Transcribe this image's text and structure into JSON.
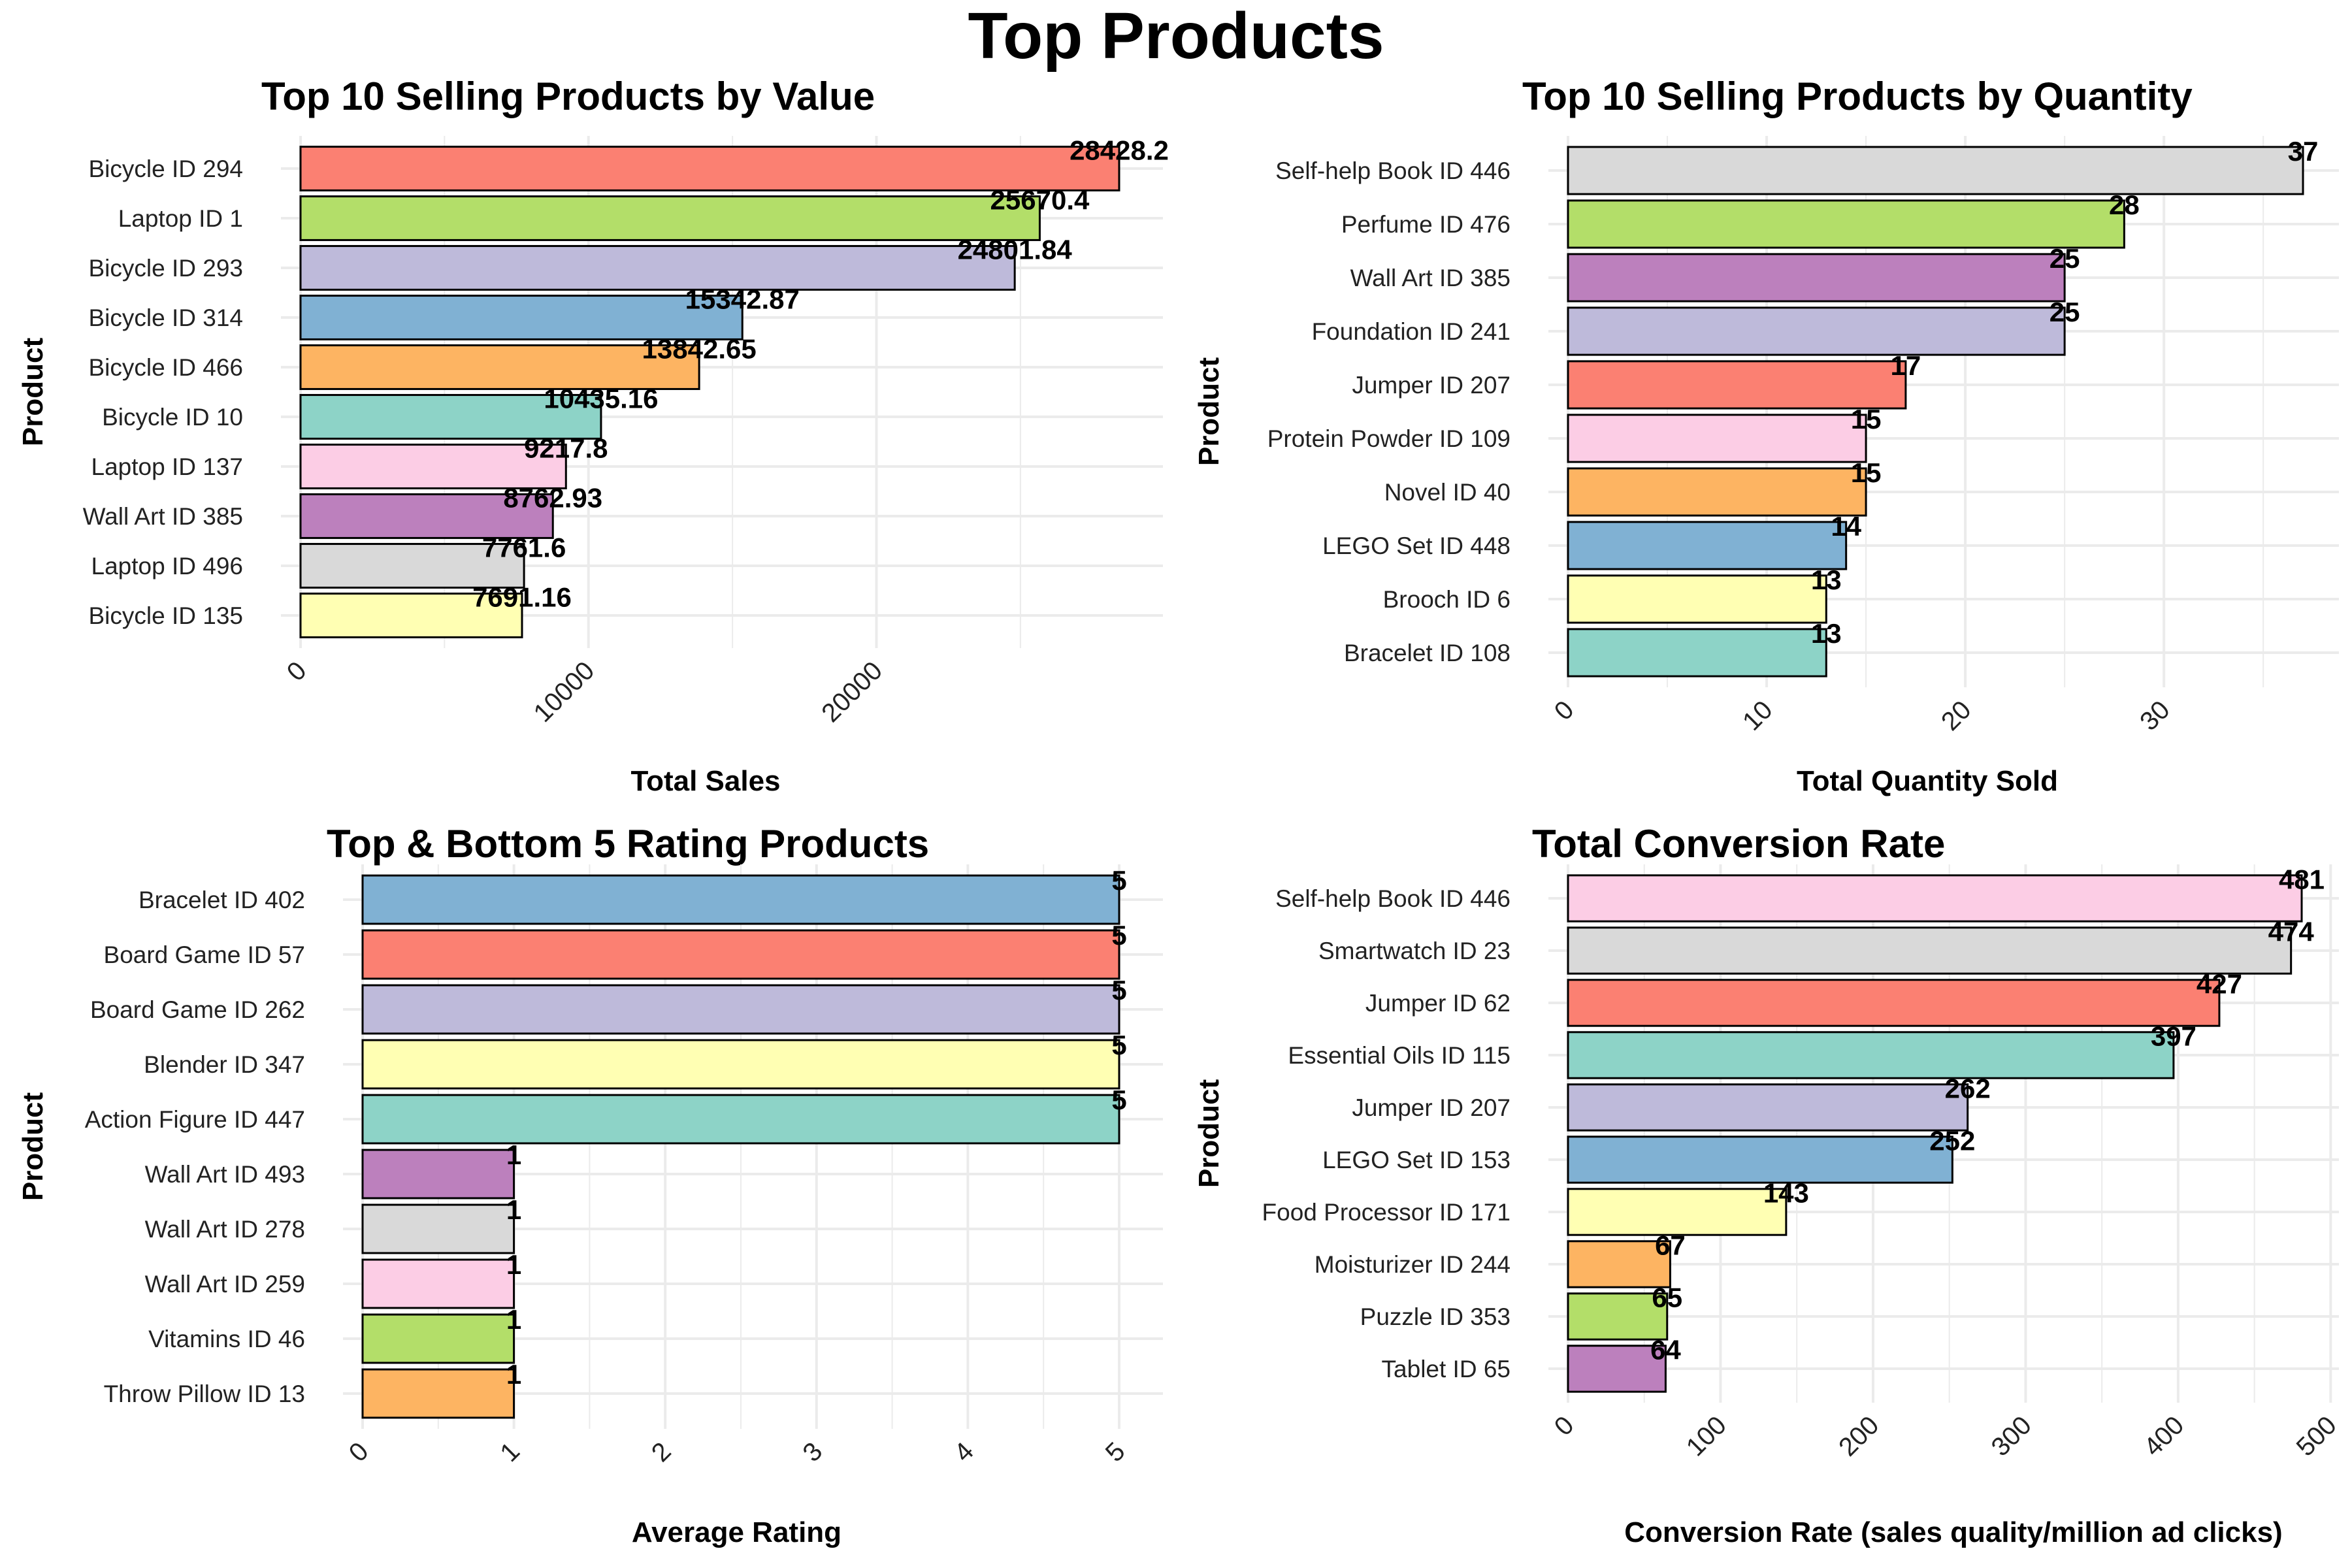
{
  "page_title": "Top Products",
  "chart_data": [
    {
      "type": "bar",
      "orientation": "horizontal",
      "title": "Top 10 Selling Products by Value",
      "xlabel": "Total Sales",
      "ylabel": "Product",
      "xlim": [
        0,
        28428.2
      ],
      "xticks": [
        0,
        10000,
        20000
      ],
      "xtick_labels": [
        "0",
        "10000",
        "20000"
      ],
      "grid": true,
      "categories": [
        "Bicycle ID 294",
        "Laptop ID 1",
        "Bicycle ID 293",
        "Bicycle ID 314",
        "Bicycle ID 466",
        "Bicycle ID 10",
        "Laptop ID 137",
        "Wall Art ID 385",
        "Laptop ID 496",
        "Bicycle ID 135"
      ],
      "values": [
        28428.2,
        25670.4,
        24801.84,
        15342.87,
        13842.65,
        10435.16,
        9217.8,
        8762.93,
        7761.6,
        7691.16
      ],
      "labels": [
        "28428.2",
        "25670.4",
        "24801.84",
        "15342.87",
        "13842.65",
        "10435.16",
        "9217.8",
        "8762.93",
        "7761.6",
        "7691.16"
      ],
      "colors": [
        "#FB8072",
        "#B3DE69",
        "#BEBADA",
        "#80B1D3",
        "#FDB462",
        "#8DD3C7",
        "#FCCDE5",
        "#BC80BD",
        "#D9D9D9",
        "#FFFFB3"
      ]
    },
    {
      "type": "bar",
      "orientation": "horizontal",
      "title": "Top 10 Selling Products by Quantity",
      "xlabel": "Total Quantity Sold",
      "ylabel": "Product",
      "xlim": [
        0,
        37
      ],
      "xticks": [
        0,
        10,
        20,
        30
      ],
      "xtick_labels": [
        "0",
        "10",
        "20",
        "30"
      ],
      "grid": true,
      "categories": [
        "Self-help Book ID 446",
        "Perfume ID 476",
        "Wall Art ID 385",
        "Foundation ID 241",
        "Jumper ID 207",
        "Protein Powder ID 109",
        "Novel ID 40",
        "LEGO Set ID 448",
        "Brooch ID 6",
        "Bracelet ID 108"
      ],
      "values": [
        37,
        28,
        25,
        25,
        17,
        15,
        15,
        14,
        13,
        13
      ],
      "labels": [
        "37",
        "28",
        "25",
        "25",
        "17",
        "15",
        "15",
        "14",
        "13",
        "13"
      ],
      "colors": [
        "#D9D9D9",
        "#B3DE69",
        "#BC80BD",
        "#BEBADA",
        "#FB8072",
        "#FCCDE5",
        "#FDB462",
        "#80B1D3",
        "#FFFFB3",
        "#8DD3C7"
      ]
    },
    {
      "type": "bar",
      "orientation": "horizontal",
      "title": "Top & Bottom 5 Rating Products",
      "xlabel": "Average Rating",
      "ylabel": "Product",
      "xlim": [
        0,
        5
      ],
      "xticks": [
        0,
        1,
        2,
        3,
        4,
        5
      ],
      "xtick_labels": [
        "0",
        "1",
        "2",
        "3",
        "4",
        "5"
      ],
      "grid": true,
      "categories": [
        "Bracelet ID 402",
        "Board Game ID 57",
        "Board Game ID 262",
        "Blender ID 347",
        "Action Figure ID 447",
        "Wall Art ID 493",
        "Wall Art ID 278",
        "Wall Art ID 259",
        "Vitamins ID 46",
        "Throw Pillow ID 13"
      ],
      "values": [
        5,
        5,
        5,
        5,
        5,
        1,
        1,
        1,
        1,
        1
      ],
      "labels": [
        "5",
        "5",
        "5",
        "5",
        "5",
        "1",
        "1",
        "1",
        "1",
        "1"
      ],
      "colors": [
        "#80B1D3",
        "#FB8072",
        "#BEBADA",
        "#FFFFB3",
        "#8DD3C7",
        "#BC80BD",
        "#D9D9D9",
        "#FCCDE5",
        "#B3DE69",
        "#FDB462"
      ]
    },
    {
      "type": "bar",
      "orientation": "horizontal",
      "title": "Total Conversion Rate",
      "xlabel": "Conversion Rate (sales quality/million ad clicks)",
      "ylabel": "Product",
      "xlim": [
        0,
        481
      ],
      "xticks": [
        0,
        100,
        200,
        300,
        400,
        500
      ],
      "xtick_labels": [
        "0",
        "100",
        "200",
        "300",
        "400",
        "500"
      ],
      "grid": true,
      "categories": [
        "Self-help Book ID 446",
        "Smartwatch ID 23",
        "Jumper ID 62",
        "Essential Oils ID 115",
        "Jumper ID 207",
        "LEGO Set ID 153",
        "Food Processor ID 171",
        "Moisturizer ID 244",
        "Puzzle ID 353",
        "Tablet ID 65"
      ],
      "values": [
        481,
        474,
        427,
        397,
        262,
        252,
        143,
        67,
        65,
        64
      ],
      "labels": [
        "481",
        "474",
        "427",
        "397",
        "262",
        "252",
        "143",
        "67",
        "65",
        "64"
      ],
      "colors": [
        "#FCCDE5",
        "#D9D9D9",
        "#FB8072",
        "#8DD3C7",
        "#BEBADA",
        "#80B1D3",
        "#FFFFB3",
        "#FDB462",
        "#B3DE69",
        "#BC80BD"
      ]
    }
  ]
}
